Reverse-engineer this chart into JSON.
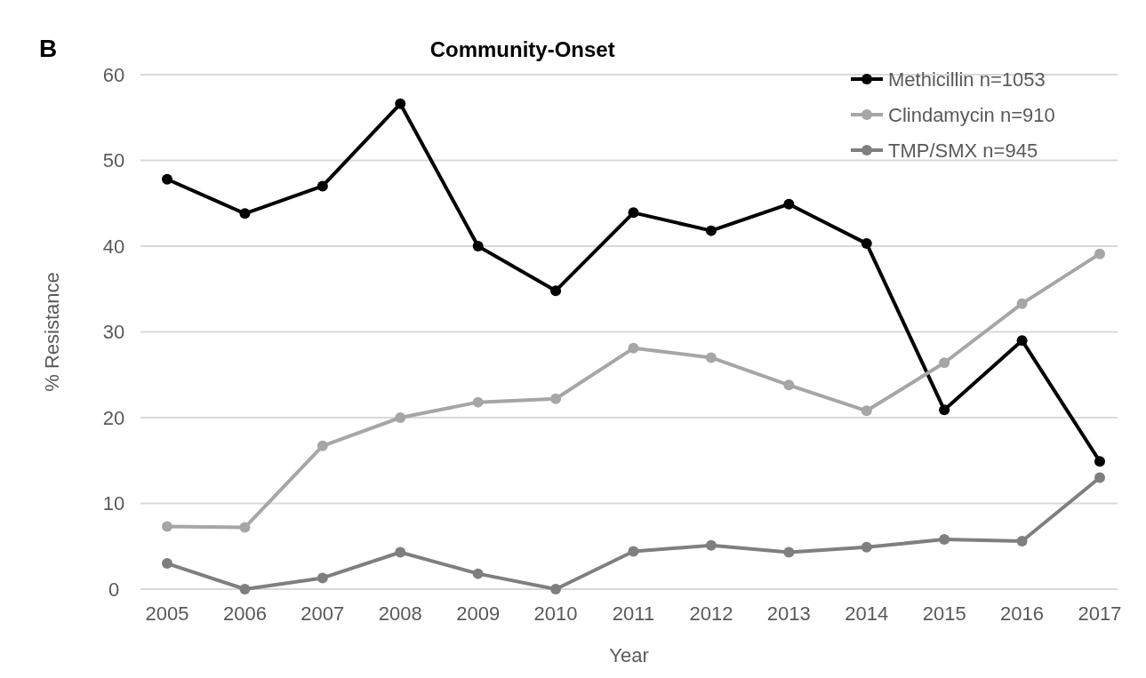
{
  "chart_data": {
    "type": "line",
    "title": "Community-Onset",
    "xlabel": "Year",
    "ylabel": "% Resistance",
    "annotations": [
      "B"
    ],
    "categories": [
      "2005",
      "2006",
      "2007",
      "2008",
      "2009",
      "2010",
      "2011",
      "2012",
      "2013",
      "2014",
      "2015",
      "2016",
      "2017"
    ],
    "series": [
      {
        "name": "Methicillin n=1053",
        "color": "#000000",
        "values": [
          47.8,
          43.8,
          47,
          56.6,
          40,
          34.8,
          43.9,
          41.8,
          44.9,
          40.3,
          20.9,
          29,
          14.9
        ]
      },
      {
        "name": "Clindamycin n=910",
        "color": "#a6a6a6",
        "values": [
          7.3,
          7.2,
          16.7,
          20,
          21.8,
          22.2,
          28.1,
          27,
          23.8,
          20.8,
          26.4,
          33.3,
          39.1
        ]
      },
      {
        "name": "TMP/SMX n=945",
        "color": "#7f7f7f",
        "values": [
          3,
          0,
          1.3,
          4.3,
          1.8,
          0,
          4.4,
          5.1,
          4.3,
          4.9,
          5.8,
          5.6,
          13
        ]
      }
    ],
    "ylim": [
      0,
      60
    ],
    "yticks": [
      0,
      10,
      20,
      30,
      40,
      50,
      60
    ],
    "grid": "y",
    "legend": "top right",
    "marker": "circle",
    "line_style": "solid"
  }
}
